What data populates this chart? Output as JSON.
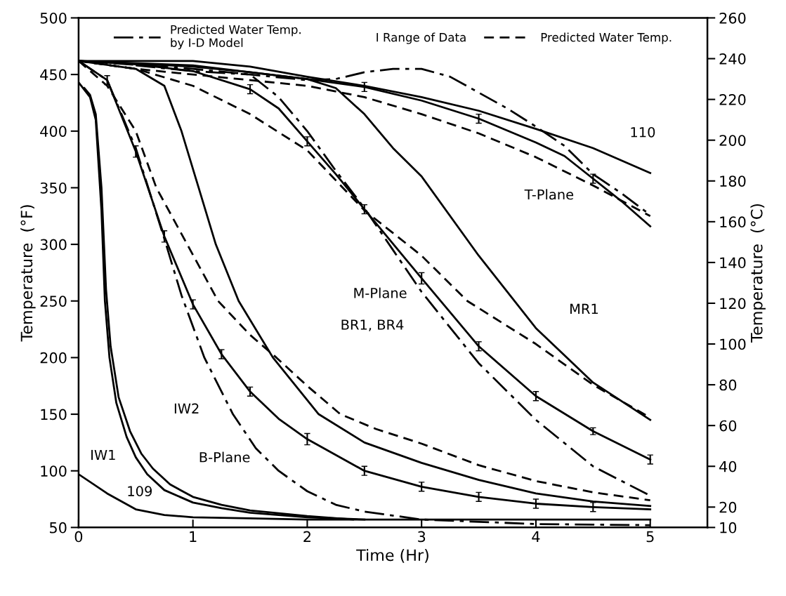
{
  "chart_data": {
    "type": "line",
    "xlabel": "Time (Hr)",
    "ylabel": "Temperature  (°F)",
    "y2label": "Temperature  (°C)",
    "xlim": [
      0,
      5.5
    ],
    "xticks": [
      0,
      1,
      2,
      3,
      4,
      5
    ],
    "ylim": [
      50,
      500
    ],
    "yticks": [
      50,
      100,
      150,
      200,
      250,
      300,
      350,
      400,
      450,
      500
    ],
    "y2lim": [
      10,
      260
    ],
    "y2ticks": [
      10,
      20,
      40,
      60,
      80,
      100,
      120,
      140,
      160,
      180,
      200,
      220,
      240,
      260
    ],
    "grid": false,
    "legend": "top",
    "marker": "none",
    "series": [
      {
        "color": "#000000",
        "line_style": "solid",
        "x": [
          0,
          0.25,
          0.5,
          0.75,
          1,
          1.5,
          2,
          2.5,
          3,
          4,
          5
        ],
        "values": [
          97,
          80,
          66,
          61,
          59,
          58,
          57,
          57,
          57,
          57,
          57
        ]
      },
      {
        "color": "#000000",
        "line_style": "solid",
        "x": [
          0,
          0.1,
          0.15,
          0.2,
          0.23,
          0.27,
          0.33,
          0.42,
          0.5,
          0.6,
          0.75,
          1,
          1.25,
          1.5,
          2,
          2.5
        ],
        "values": [
          443,
          430,
          410,
          330,
          250,
          200,
          160,
          130,
          112,
          97,
          83,
          72,
          67,
          63,
          59,
          57
        ]
      },
      {
        "color": "#000000",
        "line_style": "solid",
        "x": [
          0.05,
          0.1,
          0.15,
          0.2,
          0.24,
          0.28,
          0.35,
          0.45,
          0.55,
          0.65,
          0.8,
          1,
          1.25,
          1.5,
          2,
          2.4
        ],
        "values": [
          438,
          432,
          415,
          350,
          260,
          210,
          165,
          135,
          115,
          102,
          88,
          77,
          70,
          65,
          60,
          57
        ]
      },
      {
        "color": "#000000",
        "line_style": "solid",
        "x": [
          0,
          0.25,
          0.5,
          0.75,
          1,
          1.25,
          1.5,
          1.75,
          2,
          2.5,
          3,
          3.5,
          4,
          4.5,
          5
        ],
        "values": [
          462,
          445,
          382,
          307,
          247,
          203,
          170,
          146,
          128,
          100,
          86,
          77,
          71,
          68,
          66
        ],
        "errors": [
          null,
          4,
          5,
          5,
          4,
          4,
          4,
          null,
          5,
          4,
          4,
          4,
          4,
          4,
          null
        ]
      },
      {
        "name": "Predicted Water Temp.\nby I-D Model",
        "color": "#000000",
        "line_style": "dashdot",
        "x": [
          0,
          0.25,
          0.5,
          0.75,
          0.9,
          1.1,
          1.35,
          1.55,
          1.75,
          2,
          2.25,
          2.5,
          3,
          3.5,
          4,
          5
        ],
        "values": [
          462,
          445,
          385,
          305,
          255,
          200,
          150,
          120,
          100,
          82,
          70,
          64,
          57,
          55,
          53,
          52
        ]
      },
      {
        "name": "Predicted Water Temp.",
        "color": "#000000",
        "line_style": "dashed",
        "x": [
          0,
          0.25,
          0.5,
          0.68,
          0.95,
          1.22,
          1.5,
          1.73,
          2,
          2.29,
          2.6,
          3,
          3.5,
          4,
          4.5,
          5
        ],
        "values": [
          462,
          440,
          400,
          350,
          300,
          250,
          220,
          200,
          175,
          150,
          137,
          124,
          105,
          91,
          81,
          74
        ]
      },
      {
        "color": "#000000",
        "line_style": "solid",
        "x": [
          0,
          0.5,
          0.75,
          0.9,
          1.05,
          1.2,
          1.4,
          1.7,
          2.1,
          2.5,
          3,
          3.5,
          4,
          4.5,
          5
        ],
        "values": [
          462,
          455,
          440,
          400,
          350,
          300,
          250,
          200,
          150,
          125,
          107,
          92,
          80,
          73,
          69
        ]
      },
      {
        "color": "#000000",
        "line_style": "solid",
        "x": [
          0,
          0.5,
          1,
          1.5,
          1.75,
          2,
          2.25,
          2.5,
          3,
          3.5,
          4,
          4.5,
          5
        ],
        "values": [
          462,
          459,
          453,
          437,
          420,
          391,
          362,
          331,
          270,
          210,
          166,
          135,
          110
        ],
        "errors": [
          null,
          null,
          null,
          4,
          null,
          4,
          null,
          4,
          5,
          4,
          4,
          3,
          4
        ]
      },
      {
        "color": "#000000",
        "line_style": "dashed",
        "x": [
          0,
          0.5,
          1,
          1.5,
          2,
          2.5,
          3,
          3.4,
          4,
          4.5,
          5
        ],
        "values": [
          462,
          455,
          440,
          415,
          383,
          330,
          290,
          250,
          212,
          176,
          147
        ]
      },
      {
        "color": "#000000",
        "line_style": "dashdot",
        "x": [
          0,
          1,
          1.5,
          1.75,
          2,
          2.25,
          2.5,
          2.75,
          3,
          3.5,
          4,
          4.5,
          5
        ],
        "values": [
          462,
          455,
          450,
          430,
          400,
          365,
          332,
          295,
          258,
          195,
          145,
          104,
          78
        ]
      },
      {
        "color": "#000000",
        "line_style": "solid",
        "x": [
          0,
          1,
          1.5,
          2,
          2.25,
          2.5,
          2.75,
          3,
          3.5,
          4,
          4.5,
          5
        ],
        "values": [
          462,
          457,
          452,
          446,
          438,
          415,
          385,
          360,
          290,
          226,
          178,
          145
        ]
      },
      {
        "color": "#000000",
        "line_style": "solid",
        "x": [
          0,
          1,
          1.5,
          2,
          2.5,
          3,
          3.5,
          4,
          4.5,
          5
        ],
        "values": [
          462,
          462,
          457,
          448,
          440,
          430,
          418,
          402,
          385,
          363
        ]
      },
      {
        "color": "#000000",
        "line_style": "solid",
        "x": [
          0,
          1,
          1.5,
          2,
          2.5,
          3,
          3.5,
          4,
          4.25,
          4.5,
          4.75,
          5
        ],
        "values": [
          462,
          458,
          452,
          446,
          439,
          427,
          411,
          390,
          378,
          358,
          338,
          316
        ],
        "errors": [
          null,
          null,
          null,
          null,
          4,
          null,
          4,
          null,
          null,
          4,
          null,
          null
        ]
      },
      {
        "color": "#000000",
        "line_style": "dashed",
        "x": [
          0,
          0.5,
          1,
          1.5,
          2,
          2.5,
          3,
          3.5,
          4,
          4.5,
          5
        ],
        "values": [
          462,
          455,
          450,
          445,
          440,
          430,
          415,
          398,
          377,
          352,
          325
        ]
      },
      {
        "color": "#000000",
        "line_style": "dashdot",
        "x": [
          0.5,
          1,
          1.5,
          2,
          2.25,
          2.5,
          2.75,
          3,
          3.25,
          3.5,
          3.75,
          4,
          4.25,
          4.5,
          4.75,
          5
        ],
        "values": [
          458,
          453,
          450,
          445,
          446,
          452,
          455,
          455,
          448,
          434,
          420,
          404,
          387,
          362,
          345,
          326
        ]
      }
    ],
    "annotations": [
      "I Range of Data",
      "110",
      "T-Plane",
      "M-Plane",
      "MR1",
      "BR1, BR4",
      "B-Plane",
      "IW2",
      "IW1",
      "109"
    ]
  }
}
